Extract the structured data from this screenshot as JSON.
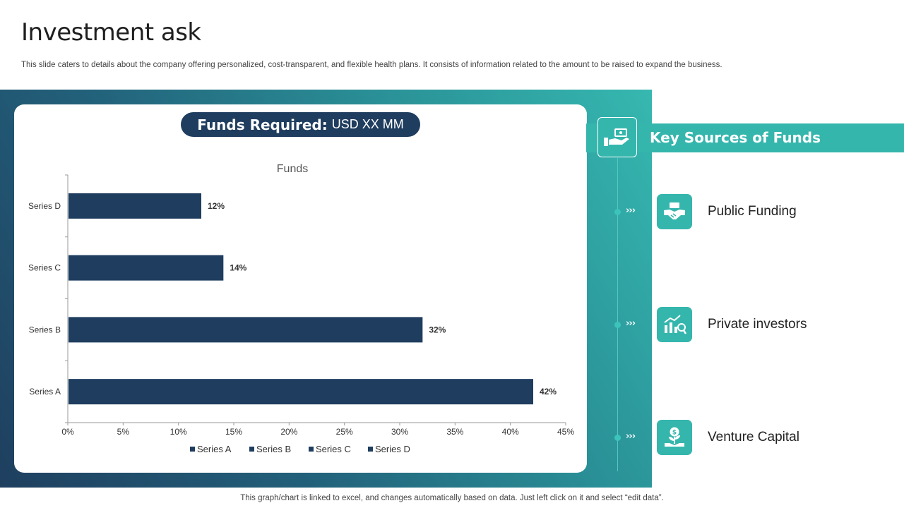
{
  "slide": {
    "title": "Investment ask",
    "subtitle": "This slide caters to details about the company offering personalized, cost-transparent, and flexible health plans. It consists of information related to the amount to be raised to expand the business.",
    "footnote": "This graph/chart is linked to excel,  and changes automatically based on data. Just left click on it and select “edit data”."
  },
  "funds_required": {
    "label": "Funds Required:",
    "value": "USD XX MM"
  },
  "key_sources": {
    "title": "Key Sources of Funds",
    "header_icon": "hand-money-icon",
    "arrow_glyph": "›››",
    "items": [
      {
        "label": "Public Funding",
        "icon": "handshake-icon"
      },
      {
        "label": "Private investors",
        "icon": "growth-chart-icon"
      },
      {
        "label": "Venture Capital",
        "icon": "money-plant-icon"
      }
    ]
  },
  "colors": {
    "navy": "#1f3d5e",
    "teal": "#35b6ad",
    "bar": "#1f3d5e"
  },
  "chart_data": {
    "type": "bar",
    "orientation": "horizontal",
    "title": "Funds",
    "categories": [
      "Series A",
      "Series B",
      "Series C",
      "Series D"
    ],
    "values": [
      42,
      32,
      14,
      12
    ],
    "value_labels": [
      "42%",
      "32%",
      "14%",
      "12%"
    ],
    "xlim": [
      0,
      45
    ],
    "xticks": [
      0,
      5,
      10,
      15,
      20,
      25,
      30,
      35,
      40,
      45
    ],
    "xtick_labels": [
      "0%",
      "5%",
      "10%",
      "15%",
      "20%",
      "25%",
      "30%",
      "35%",
      "40%",
      "45%"
    ],
    "legend": [
      "Series A",
      "Series B",
      "Series C",
      "Series D"
    ],
    "legend_position": "bottom",
    "grid": false
  }
}
